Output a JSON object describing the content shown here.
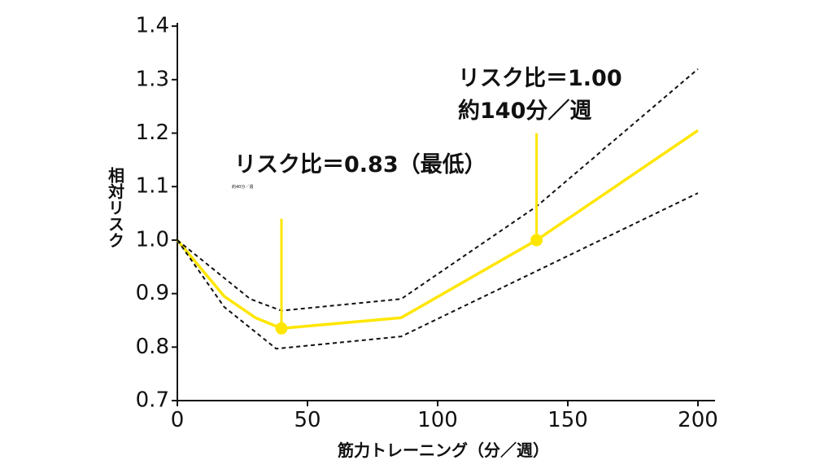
{
  "chart_data": {
    "type": "line",
    "xlabel": "筋力トレーニング（分／週）",
    "ylabel": "相対リスク",
    "xlim": [
      0,
      205
    ],
    "ylim": [
      0.7,
      1.4
    ],
    "xticks": [
      "0",
      "50",
      "100",
      "150",
      "200"
    ],
    "xtick_values": [
      0,
      50,
      100,
      150,
      200
    ],
    "yticks": [
      "0.7",
      "0.8",
      "0.9",
      "1.0",
      "1.1",
      "1.2",
      "1.3",
      "1.4"
    ],
    "ytick_values": [
      0.7,
      0.8,
      0.9,
      1.0,
      1.1,
      1.2,
      1.3,
      1.4
    ],
    "grid": false,
    "series": [
      {
        "role": "estimate",
        "color": "#ffe600",
        "style": "solid",
        "x": [
          0,
          18,
          30,
          40,
          86,
          138,
          200
        ],
        "y": [
          1.0,
          0.895,
          0.855,
          0.835,
          0.855,
          1.0,
          1.205
        ]
      },
      {
        "role": "upper",
        "color": "#111111",
        "style": "dashed",
        "x": [
          0,
          28,
          40,
          86,
          138,
          200
        ],
        "y": [
          1.0,
          0.89,
          0.868,
          0.89,
          1.063,
          1.32
        ]
      },
      {
        "role": "lower",
        "color": "#111111",
        "style": "dashed",
        "x": [
          0,
          18,
          38,
          86,
          200
        ],
        "y": [
          1.0,
          0.875,
          0.797,
          0.82,
          1.088
        ]
      }
    ],
    "highlights": [
      {
        "x": 40,
        "y": 0.835,
        "line_top": 1.04,
        "label": "リスク比＝0.83（最低）",
        "sublabel": "約40分／週"
      },
      {
        "x": 138,
        "y": 1.0,
        "line_top": 1.2,
        "label": "リスク比＝1.00",
        "sublabel": "約140分／週"
      }
    ],
    "highlight_color": "#ffe600"
  }
}
